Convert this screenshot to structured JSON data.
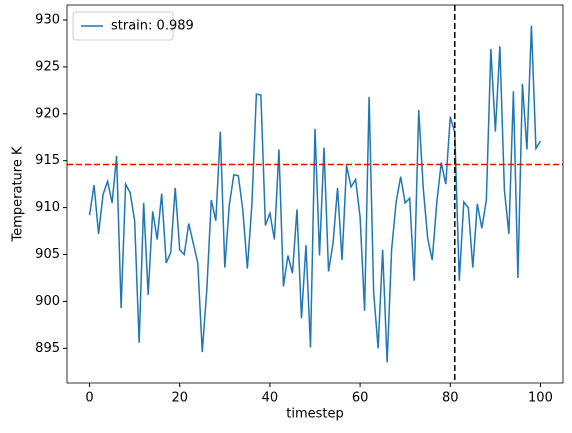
{
  "chart_data": {
    "type": "line",
    "x_label": "timestep",
    "y_label": "Temperature K",
    "x": [
      0,
      1,
      2,
      3,
      4,
      5,
      6,
      7,
      8,
      9,
      10,
      11,
      12,
      13,
      14,
      15,
      16,
      17,
      18,
      19,
      20,
      21,
      22,
      23,
      24,
      25,
      26,
      27,
      28,
      29,
      30,
      31,
      32,
      33,
      34,
      35,
      36,
      37,
      38,
      39,
      40,
      41,
      42,
      43,
      44,
      45,
      46,
      47,
      48,
      49,
      50,
      51,
      52,
      53,
      54,
      55,
      56,
      57,
      58,
      59,
      60,
      61,
      62,
      63,
      64,
      65,
      66,
      67,
      68,
      69,
      70,
      71,
      72,
      73,
      74,
      75,
      76,
      77,
      78,
      79,
      80,
      81,
      82,
      83,
      84,
      85,
      86,
      87,
      88,
      89,
      90,
      91,
      92,
      93,
      94,
      95,
      96,
      97,
      98,
      99,
      100
    ],
    "series": [
      {
        "name": "strain: 0.989",
        "color": "#1f77b4",
        "values": [
          909.2,
          912.4,
          907.2,
          911.4,
          912.8,
          910.5,
          915.5,
          899.3,
          912.5,
          911.6,
          908.6,
          895.6,
          910.5,
          900.7,
          909.6,
          906.6,
          911.5,
          904.1,
          905.2,
          912.1,
          905.5,
          905.0,
          908.3,
          906.2,
          904.1,
          894.6,
          901.2,
          910.8,
          908.6,
          918.1,
          903.6,
          910.3,
          913.5,
          913.4,
          909.7,
          903.5,
          910.3,
          922.1,
          922.0,
          908.1,
          909.4,
          906.6,
          916.2,
          901.6,
          904.9,
          903.0,
          909.8,
          898.2,
          906.0,
          895.1,
          918.4,
          904.9,
          916.4,
          903.2,
          906.2,
          912.1,
          904.4,
          914.5,
          912.2,
          913.0,
          909.0,
          899.0,
          921.8,
          901.0,
          895.0,
          905.5,
          893.5,
          905.6,
          910.6,
          913.3,
          910.5,
          911.0,
          902.2,
          920.4,
          912.1,
          906.7,
          904.4,
          910.5,
          914.8,
          912.5,
          919.7,
          918.0,
          902.2,
          910.6,
          910.0,
          903.6,
          910.4,
          907.8,
          910.8,
          926.9,
          918.1,
          927.2,
          911.9,
          907.2,
          922.4,
          902.5,
          923.2,
          916.2,
          929.4,
          916.3,
          917.1
        ]
      }
    ],
    "xlim": [
      -5,
      105
    ],
    "ylim": [
      891.3,
      931.6
    ],
    "xticks": [
      0,
      20,
      40,
      60,
      80,
      100
    ],
    "yticks": [
      895,
      900,
      905,
      910,
      915,
      920,
      925,
      930
    ],
    "hlines": [
      {
        "value": 914.6,
        "color": "red"
      }
    ],
    "vlines": [
      {
        "value": 81,
        "color": "black"
      }
    ],
    "legend": "upper-left",
    "grid": false
  }
}
